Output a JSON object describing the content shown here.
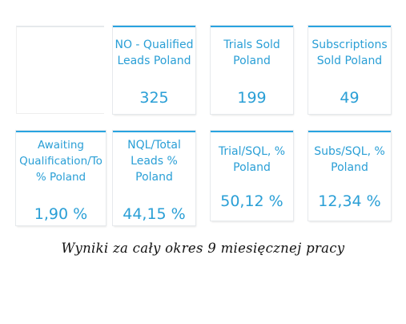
{
  "tiles_row1": [
    {
      "label_lines": [
        "NO - Qualified",
        "Leads Poland"
      ],
      "value": "325"
    },
    {
      "label_lines": [
        "Trials Sold",
        "Poland"
      ],
      "value": "199"
    },
    {
      "label_lines": [
        "Subscriptions",
        "Sold Poland"
      ],
      "value": "49"
    }
  ],
  "tiles_row2": [
    {
      "label_lines": [
        "Awaiting",
        "Qualification/To",
        "% Poland"
      ],
      "value": "1,90 %"
    },
    {
      "label_lines": [
        "NQL/Total",
        "Leads %",
        "Poland"
      ],
      "value": "44,15 %"
    },
    {
      "label_lines": [
        "Trial/SQL, %",
        "Poland"
      ],
      "value": "50,12 %"
    },
    {
      "label_lines": [
        "Subs/SQL, %",
        "Poland"
      ],
      "value": "12,34 %"
    }
  ],
  "caption": "Wyniki za cały okres 9 miesięcznej pracy",
  "colors": {
    "accent": "#29a3e0",
    "text": "#2a9fd6"
  }
}
